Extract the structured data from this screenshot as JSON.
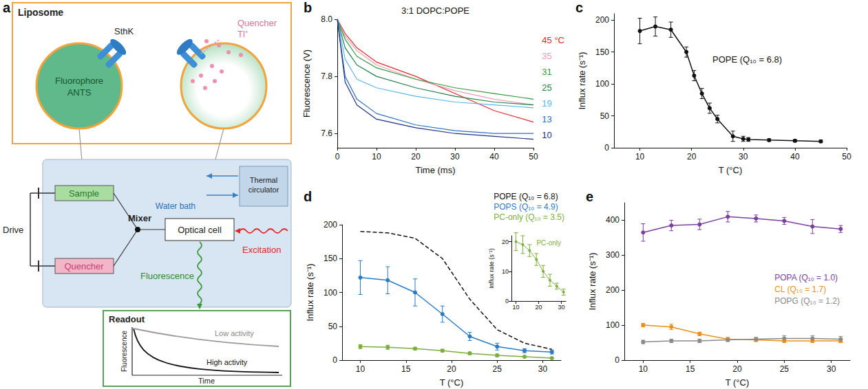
{
  "diagram": {
    "panel": "a",
    "liposome": {
      "title": "Liposome",
      "channel": "SthK",
      "fluorophore": "Fluorophore ANTS",
      "quencher": "Quencher Tl⁺"
    },
    "apparatus": {
      "drive": "Drive",
      "sample": "Sample",
      "quencher": "Quencher",
      "mixer": "Mixer",
      "optical_cell": "Optical cell",
      "water_bath": "Water bath",
      "circulator": "Thermal circulator",
      "excitation": "Excitation",
      "fluorescence": "Fluorescence"
    },
    "readout": {
      "title": "Readout",
      "low": "Low activity",
      "high": "High activity",
      "y_label": "Fluorescence",
      "x_label": "Time"
    }
  },
  "chart_data": [
    {
      "panel": "b",
      "type": "line",
      "title": "3:1 DOPC:POPE",
      "x_label": "Time (ms)",
      "y_label": "Fluorescence (V)",
      "x": [
        0,
        2,
        5,
        10,
        20,
        30,
        40,
        50
      ],
      "xlim": [
        0,
        50
      ],
      "xticks": [
        0,
        10,
        20,
        30,
        40,
        50
      ],
      "ylim": [
        7.55,
        8
      ],
      "yticks": [
        7.6,
        7.8,
        {
          "value": 8,
          "label": "8.0"
        }
      ],
      "grid": false,
      "legend": "right",
      "series": [
        {
          "name": "45 °C",
          "color": "#e3262d",
          "marker": "none",
          "line_style": "solid",
          "values": [
            8.0,
            7.95,
            7.9,
            7.85,
            7.8,
            7.74,
            7.68,
            7.64
          ]
        },
        {
          "name": "35",
          "color": "#f09ab6",
          "marker": "none",
          "line_style": "solid",
          "values": [
            8.0,
            7.94,
            7.89,
            7.84,
            7.79,
            7.75,
            7.72,
            7.7
          ]
        },
        {
          "name": "31",
          "color": "#2f9a3c",
          "marker": "none",
          "line_style": "solid",
          "values": [
            8.0,
            7.93,
            7.87,
            7.83,
            7.79,
            7.76,
            7.74,
            7.72
          ]
        },
        {
          "name": "25",
          "color": "#1f7f4a",
          "marker": "none",
          "line_style": "solid",
          "values": [
            8.0,
            7.9,
            7.84,
            7.8,
            7.76,
            7.73,
            7.71,
            7.7
          ]
        },
        {
          "name": "19",
          "color": "#5bb5e6",
          "marker": "none",
          "line_style": "solid",
          "values": [
            8.0,
            7.86,
            7.79,
            7.76,
            7.73,
            7.71,
            7.7,
            7.69
          ]
        },
        {
          "name": "13",
          "color": "#2a6fc0",
          "marker": "none",
          "line_style": "solid",
          "values": [
            8.0,
            7.8,
            7.72,
            7.67,
            7.63,
            7.61,
            7.6,
            7.6
          ]
        },
        {
          "name": "10",
          "color": "#1c2f86",
          "marker": "none",
          "line_style": "solid",
          "values": [
            8.0,
            7.78,
            7.7,
            7.65,
            7.62,
            7.6,
            7.59,
            7.58
          ]
        }
      ]
    },
    {
      "panel": "c",
      "type": "line",
      "title": "POPE (Q₁₀ = 6.8)",
      "x_label": "T (°C)",
      "y_label": "Influx rate (s⁻¹)",
      "x": [
        10,
        13,
        16,
        19,
        20.5,
        22,
        23.5,
        25,
        28,
        30,
        31,
        35,
        40,
        45
      ],
      "xlim": [
        5,
        50
      ],
      "xticks": [
        10,
        20,
        30,
        40,
        50
      ],
      "ylim": [
        0,
        210
      ],
      "yticks": [
        0,
        50,
        100,
        150,
        200
      ],
      "grid": false,
      "series": [
        {
          "color": "#111111",
          "marker": "circle",
          "line_style": "solid",
          "values": [
            183,
            190,
            185,
            150,
            113,
            85,
            62,
            45,
            18,
            14,
            13,
            12,
            11,
            10
          ],
          "errors": [
            20,
            15,
            12,
            8,
            8,
            8,
            8,
            6,
            8,
            4,
            3,
            2,
            2,
            2
          ]
        }
      ]
    },
    {
      "panel": "d",
      "type": "line",
      "x_label": "T (°C)",
      "y_label": "Influx rate (s⁻¹)",
      "x": [
        10,
        13,
        16,
        19,
        22,
        25,
        28,
        31
      ],
      "xlim": [
        8,
        32
      ],
      "xticks": [
        10,
        15,
        20,
        25,
        30
      ],
      "ylim": [
        0,
        200
      ],
      "yticks": [
        0,
        50,
        100,
        150,
        200
      ],
      "grid": false,
      "legend": "top-right",
      "series": [
        {
          "name": "POPE (Q₁₀ = 6.8)",
          "color": "#111111",
          "marker": "none",
          "line_style": "dashed",
          "values": [
            190,
            188,
            180,
            150,
            90,
            45,
            25,
            16
          ]
        },
        {
          "name": "POPS (Q₁₀ = 4.9)",
          "color": "#2b7bc4",
          "marker": "circle",
          "line_style": "solid",
          "values": [
            122,
            118,
            100,
            68,
            35,
            20,
            14,
            12
          ],
          "errors": [
            25,
            20,
            20,
            12,
            6,
            5,
            3,
            3
          ]
        },
        {
          "name": "PC-only (Q₁₀ = 3.5)",
          "color": "#7cae3c",
          "marker": "circle",
          "line_style": "solid",
          "values": [
            20,
            19,
            17,
            14,
            10,
            7,
            5,
            3
          ],
          "errors": [
            3,
            3,
            2,
            2,
            2,
            2,
            1,
            1
          ]
        }
      ]
    },
    {
      "type": "line",
      "title": "PC-only",
      "y_label": "Influx rate (s⁻¹)",
      "x": [
        10,
        13,
        16,
        19,
        22,
        25,
        28,
        31
      ],
      "xlim": [
        8,
        32
      ],
      "xticks": [
        10,
        20,
        30
      ],
      "ylim": [
        0,
        22
      ],
      "yticks": [
        0,
        10,
        20
      ],
      "grid": false,
      "series": [
        {
          "color": "#7cae3c",
          "marker": "circle",
          "line_style": "solid",
          "values": [
            20,
            19,
            17,
            14,
            10,
            7,
            5,
            3
          ],
          "errors": [
            3,
            3,
            2,
            2,
            2,
            2,
            1,
            1
          ]
        }
      ]
    },
    {
      "panel": "e",
      "type": "line",
      "x_label": "T (°C)",
      "y_label": "Influx rate (s⁻¹)",
      "x": [
        10,
        13,
        16,
        19,
        22,
        25,
        28,
        31
      ],
      "xlim": [
        8,
        32
      ],
      "xticks": [
        10,
        15,
        20,
        25,
        30
      ],
      "ylim": [
        0,
        450
      ],
      "yticks": [
        0,
        100,
        200,
        300,
        400
      ],
      "grid": false,
      "legend": "right",
      "series": [
        {
          "name": "POPA (Q₁₀ = 1.0)",
          "color": "#7b3f9e",
          "marker": "circle",
          "line_style": "solid",
          "values": [
            365,
            385,
            388,
            410,
            405,
            398,
            382,
            375
          ],
          "errors": [
            25,
            15,
            15,
            15,
            10,
            10,
            20,
            10
          ]
        },
        {
          "name": "CL (Q₁₀ = 1.7)",
          "color": "#e8901a",
          "marker": "circle",
          "line_style": "solid",
          "values": [
            100,
            95,
            75,
            60,
            58,
            55,
            55,
            55
          ],
          "errors": [
            5,
            8,
            5,
            5,
            5,
            5,
            5,
            5
          ]
        },
        {
          "name": "POPG (Q₁₀ = 1.2)",
          "color": "#8a8a8a",
          "marker": "circle",
          "line_style": "solid",
          "values": [
            52,
            55,
            55,
            58,
            60,
            62,
            62,
            60
          ],
          "errors": [
            5,
            5,
            5,
            5,
            5,
            8,
            8,
            8
          ]
        }
      ]
    }
  ]
}
